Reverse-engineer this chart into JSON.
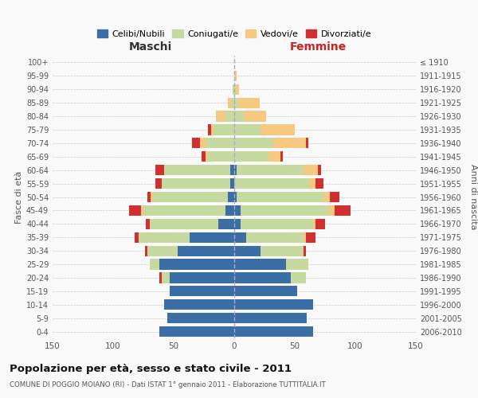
{
  "age_groups": [
    "0-4",
    "5-9",
    "10-14",
    "15-19",
    "20-24",
    "25-29",
    "30-34",
    "35-39",
    "40-44",
    "45-49",
    "50-54",
    "55-59",
    "60-64",
    "65-69",
    "70-74",
    "75-79",
    "80-84",
    "85-89",
    "90-94",
    "95-99",
    "100+"
  ],
  "birth_years": [
    "2006-2010",
    "2001-2005",
    "1996-2000",
    "1991-1995",
    "1986-1990",
    "1981-1985",
    "1976-1980",
    "1971-1975",
    "1966-1970",
    "1961-1965",
    "1956-1960",
    "1951-1955",
    "1946-1950",
    "1941-1945",
    "1936-1940",
    "1931-1935",
    "1926-1930",
    "1921-1925",
    "1916-1920",
    "1911-1915",
    "≤ 1910"
  ],
  "males": {
    "celibi": [
      62,
      55,
      58,
      53,
      53,
      62,
      47,
      37,
      13,
      7,
      5,
      3,
      3,
      0,
      0,
      0,
      0,
      0,
      0,
      0,
      0
    ],
    "coniugati": [
      0,
      0,
      0,
      0,
      7,
      8,
      25,
      42,
      57,
      68,
      62,
      57,
      55,
      22,
      23,
      17,
      7,
      2,
      1,
      0,
      0
    ],
    "vedovi": [
      0,
      0,
      0,
      0,
      0,
      0,
      0,
      0,
      0,
      2,
      2,
      0,
      0,
      2,
      5,
      2,
      8,
      3,
      0,
      0,
      0
    ],
    "divorziati": [
      0,
      0,
      0,
      0,
      2,
      0,
      2,
      3,
      3,
      10,
      3,
      5,
      7,
      3,
      7,
      3,
      0,
      0,
      0,
      0,
      0
    ]
  },
  "females": {
    "nubili": [
      65,
      60,
      65,
      52,
      47,
      43,
      22,
      10,
      5,
      5,
      2,
      0,
      2,
      0,
      0,
      0,
      0,
      0,
      0,
      0,
      0
    ],
    "coniugate": [
      0,
      0,
      0,
      0,
      12,
      18,
      35,
      47,
      60,
      73,
      72,
      62,
      55,
      28,
      32,
      22,
      8,
      3,
      1,
      0,
      0
    ],
    "vedove": [
      0,
      0,
      0,
      0,
      0,
      0,
      0,
      2,
      2,
      5,
      5,
      5,
      12,
      10,
      27,
      28,
      18,
      18,
      3,
      2,
      0
    ],
    "divorziate": [
      0,
      0,
      0,
      0,
      0,
      0,
      2,
      8,
      8,
      13,
      8,
      7,
      3,
      2,
      2,
      0,
      0,
      0,
      0,
      0,
      0
    ]
  },
  "colors": {
    "celibi": "#3a6ea5",
    "coniugati": "#c5d9a0",
    "vedovi": "#f5c97f",
    "divorziati": "#d13030"
  },
  "xlim": 150,
  "title": "Popolazione per età, sesso e stato civile - 2011",
  "subtitle": "COMUNE DI POGGIO MOIANO (RI) - Dati ISTAT 1° gennaio 2011 - Elaborazione TUTTITALIA.IT",
  "xlabel_left": "Maschi",
  "xlabel_right": "Femmine",
  "ylabel_left": "Fasce di età",
  "ylabel_right": "Anni di nascita",
  "legend": [
    "Celibi/Nubili",
    "Coniugati/e",
    "Vedovi/e",
    "Divorziati/e"
  ],
  "bg_color": "#f9f9f9",
  "grid_color": "#cccccc"
}
